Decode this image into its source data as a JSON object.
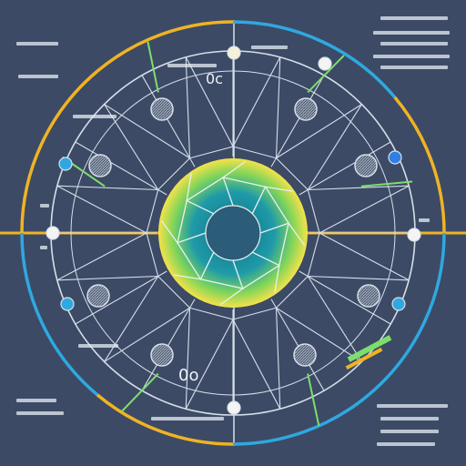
{
  "diagram": {
    "center_label_top": "",
    "center_label_bottom": "",
    "label_upper": "0c",
    "label_lower": "0o",
    "colors": {
      "background": "#3c4a66",
      "ring_gold": "#f0b323",
      "ring_blue": "#2fa8e0",
      "line": "#d6dfe8",
      "accent_green": "#7cdf6b",
      "hub_yellow": "#f4e24a",
      "hub_teal": "#1f9aa8"
    }
  }
}
